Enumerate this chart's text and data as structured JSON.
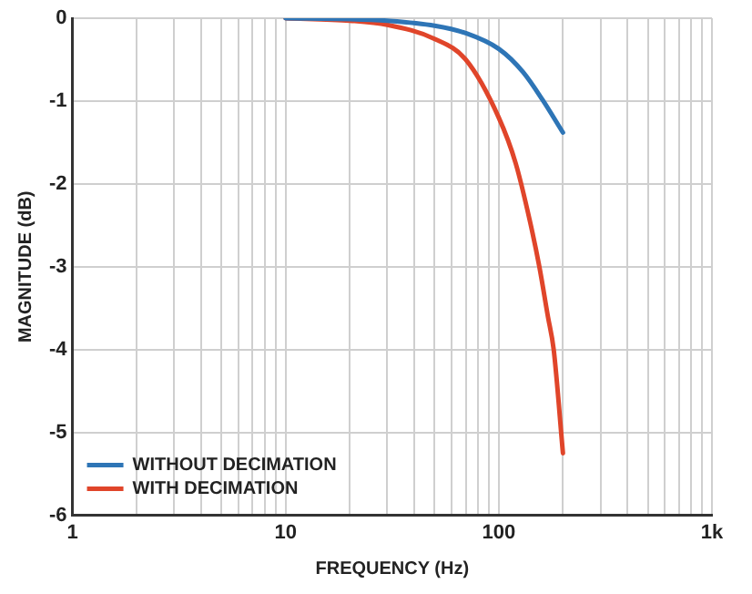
{
  "chart_data": {
    "type": "line",
    "xlabel": "FREQUENCY (Hz)",
    "ylabel": "MAGNITUDE (dB)",
    "log": "x",
    "xlim": [
      1,
      1000
    ],
    "ylim": [
      -6,
      0
    ],
    "xticks": [
      1,
      {
        "value": 2,
        "label": null
      },
      {
        "value": 3,
        "label": null
      },
      {
        "value": 4,
        "label": null
      },
      {
        "value": 5,
        "label": null
      },
      {
        "value": 6,
        "label": null
      },
      {
        "value": 7,
        "label": null
      },
      {
        "value": 8,
        "label": null
      },
      {
        "value": 9,
        "label": null
      },
      10,
      {
        "value": 20,
        "label": null
      },
      {
        "value": 30,
        "label": null
      },
      {
        "value": 40,
        "label": null
      },
      {
        "value": 50,
        "label": null
      },
      {
        "value": 60,
        "label": null
      },
      {
        "value": 70,
        "label": null
      },
      {
        "value": 80,
        "label": null
      },
      {
        "value": 90,
        "label": null
      },
      100,
      {
        "value": 200,
        "label": null
      },
      {
        "value": 300,
        "label": null
      },
      {
        "value": 400,
        "label": null
      },
      {
        "value": 500,
        "label": null
      },
      {
        "value": 600,
        "label": null
      },
      {
        "value": 700,
        "label": null
      },
      {
        "value": 800,
        "label": null
      },
      {
        "value": 900,
        "label": null
      },
      {
        "value": 1000,
        "label": "1k"
      }
    ],
    "yticks": [
      0,
      -1,
      -2,
      -3,
      -4,
      -5,
      -6
    ],
    "grid": true,
    "legend": "bottom left",
    "marker": "none",
    "line_style": "solid",
    "series": [
      {
        "name": "WITHOUT DECIMATION",
        "color": "#2e75b6",
        "x": [
          10,
          20,
          30,
          50,
          70,
          100,
          130,
          160,
          200
        ],
        "values": [
          0,
          -0.01,
          -0.03,
          -0.09,
          -0.18,
          -0.37,
          -0.65,
          -0.98,
          -1.38
        ]
      },
      {
        "name": "WITH DECIMATION",
        "color": "#e0452a",
        "x": [
          10,
          20,
          30,
          50,
          70,
          100,
          120,
          140,
          155,
          170,
          181,
          200
        ],
        "values": [
          0,
          -0.03,
          -0.08,
          -0.25,
          -0.5,
          -1.2,
          -1.75,
          -2.45,
          -3.0,
          -3.6,
          -4.0,
          -5.25
        ]
      }
    ]
  }
}
